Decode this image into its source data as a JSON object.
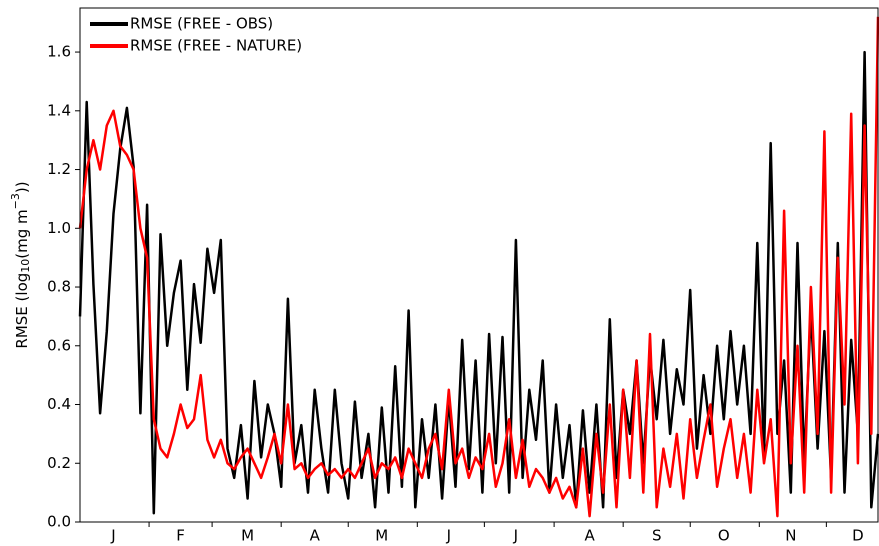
{
  "chart_data": {
    "type": "line",
    "y_label_parts": [
      "RMSE (log",
      "10",
      "(mg m",
      "−3",
      "))"
    ],
    "categories": [
      null,
      null,
      null,
      null,
      null,
      "J",
      null,
      null,
      null,
      null,
      null,
      null,
      null,
      null,
      null,
      "F",
      null,
      null,
      null,
      null,
      null,
      null,
      null,
      null,
      null,
      "M",
      null,
      null,
      null,
      null,
      null,
      null,
      null,
      null,
      null,
      "A",
      null,
      null,
      null,
      null,
      null,
      null,
      null,
      null,
      null,
      "M",
      null,
      null,
      null,
      null,
      null,
      null,
      null,
      null,
      null,
      "J",
      null,
      null,
      null,
      null,
      null,
      null,
      null,
      null,
      null,
      "J",
      null,
      null,
      null,
      null,
      null,
      null,
      null,
      null,
      null,
      null,
      "A",
      null,
      null,
      null,
      null,
      null,
      null,
      null,
      null,
      null,
      "S",
      null,
      null,
      null,
      null,
      null,
      null,
      null,
      null,
      null,
      "O",
      null,
      null,
      null,
      null,
      null,
      null,
      null,
      null,
      null,
      "N",
      null,
      null,
      null,
      null,
      null,
      null,
      null,
      null,
      null,
      "D",
      null,
      null,
      null
    ],
    "series": [
      {
        "name": "RMSE (FREE - OBS)",
        "color": "#000000",
        "values": [
          0.7,
          1.43,
          0.81,
          0.37,
          0.65,
          1.05,
          1.27,
          1.41,
          1.21,
          0.37,
          1.08,
          0.03,
          0.98,
          0.6,
          0.78,
          0.89,
          0.45,
          0.81,
          0.61,
          0.93,
          0.78,
          0.96,
          0.25,
          0.15,
          0.33,
          0.08,
          0.48,
          0.22,
          0.4,
          0.3,
          0.12,
          0.76,
          0.2,
          0.33,
          0.1,
          0.45,
          0.25,
          0.1,
          0.45,
          0.2,
          0.08,
          0.41,
          0.15,
          0.3,
          0.05,
          0.39,
          0.1,
          0.53,
          0.12,
          0.72,
          0.05,
          0.35,
          0.15,
          0.4,
          0.08,
          0.42,
          0.12,
          0.62,
          0.18,
          0.55,
          0.1,
          0.64,
          0.2,
          0.63,
          0.1,
          0.96,
          0.15,
          0.45,
          0.28,
          0.55,
          0.1,
          0.4,
          0.15,
          0.33,
          0.05,
          0.38,
          0.1,
          0.4,
          0.05,
          0.69,
          0.15,
          0.45,
          0.3,
          0.55,
          0.2,
          0.56,
          0.35,
          0.62,
          0.3,
          0.52,
          0.4,
          0.79,
          0.25,
          0.5,
          0.3,
          0.6,
          0.35,
          0.65,
          0.4,
          0.6,
          0.3,
          0.95,
          0.22,
          1.29,
          0.3,
          0.55,
          0.1,
          0.95,
          0.2,
          0.72,
          0.25,
          0.65,
          0.15,
          0.95,
          0.1,
          0.62,
          0.3,
          1.6,
          0.05,
          0.3
        ]
      },
      {
        "name": "RMSE (FREE - NATURE)",
        "color": "#ff0000",
        "values": [
          1.0,
          1.2,
          1.3,
          1.2,
          1.35,
          1.4,
          1.28,
          1.25,
          1.2,
          1.0,
          0.9,
          0.35,
          0.25,
          0.22,
          0.3,
          0.4,
          0.32,
          0.35,
          0.5,
          0.28,
          0.22,
          0.28,
          0.2,
          0.18,
          0.22,
          0.25,
          0.2,
          0.15,
          0.22,
          0.3,
          0.2,
          0.4,
          0.18,
          0.2,
          0.15,
          0.18,
          0.2,
          0.16,
          0.18,
          0.15,
          0.18,
          0.15,
          0.2,
          0.25,
          0.15,
          0.2,
          0.18,
          0.22,
          0.15,
          0.25,
          0.2,
          0.15,
          0.25,
          0.3,
          0.18,
          0.45,
          0.2,
          0.25,
          0.15,
          0.22,
          0.18,
          0.3,
          0.12,
          0.2,
          0.35,
          0.15,
          0.28,
          0.12,
          0.18,
          0.15,
          0.1,
          0.15,
          0.08,
          0.12,
          0.05,
          0.25,
          0.02,
          0.3,
          0.1,
          0.4,
          0.05,
          0.45,
          0.15,
          0.55,
          0.1,
          0.64,
          0.05,
          0.25,
          0.12,
          0.3,
          0.08,
          0.35,
          0.15,
          0.28,
          0.4,
          0.12,
          0.25,
          0.35,
          0.15,
          0.3,
          0.1,
          0.45,
          0.2,
          0.35,
          0.02,
          1.06,
          0.2,
          0.6,
          0.1,
          0.8,
          0.3,
          1.33,
          0.1,
          0.9,
          0.4,
          1.39,
          0.2,
          1.35,
          0.3,
          1.72
        ]
      }
    ],
    "ylim": [
      0,
      1.75
    ],
    "yticks": [
      {
        "value": 0,
        "label": "0.0"
      },
      0.2,
      0.4,
      0.6,
      0.8,
      {
        "value": 1,
        "label": "1.0"
      },
      1.2,
      1.4,
      1.6
    ],
    "legend": "upper left"
  }
}
